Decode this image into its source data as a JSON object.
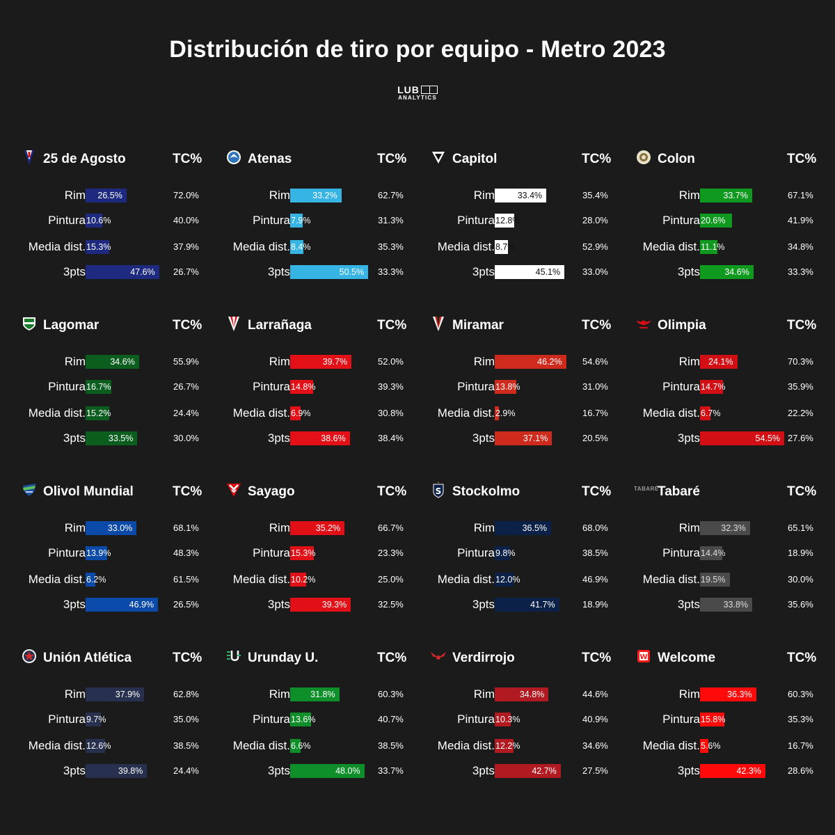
{
  "title": "Distribución de tiro por equipo - Metro 2023",
  "brand": {
    "main": "LUB",
    "sub": "ANALYTICS"
  },
  "tc_header": "TC%",
  "chart_data": {
    "type": "bar",
    "title": "Distribución de tiro por equipo - Metro 2023",
    "categories": [
      "Rim",
      "Pintura",
      "Media dist.",
      "3pts"
    ],
    "value_unit": "%",
    "teams": [
      {
        "name": "25 de Agosto",
        "color": "#1e2a80",
        "text_color": "#ffffff",
        "logo": "pennant-shield-icon",
        "distribution": [
          26.5,
          10.6,
          15.3,
          47.6
        ],
        "distribution_labels": [
          "26.5%",
          "10.6%",
          "15.3%",
          "47.6%"
        ],
        "tc": [
          "72.0%",
          "40.0%",
          "37.9%",
          "26.7%"
        ]
      },
      {
        "name": "Atenas",
        "color": "#36b5e5",
        "text_color": "#ffffff",
        "logo": "round-crest-icon",
        "distribution": [
          33.2,
          7.9,
          8.4,
          50.5
        ],
        "distribution_labels": [
          "33.2%",
          "7.9%",
          "8.4%",
          "50.5%"
        ],
        "tc": [
          "62.7%",
          "31.3%",
          "35.3%",
          "33.3%"
        ]
      },
      {
        "name": "Capitol",
        "color": "#ffffff",
        "text_color": "#111111",
        "logo": "triangle-shield-icon",
        "distribution": [
          33.4,
          12.8,
          8.7,
          45.1
        ],
        "distribution_labels": [
          "33.4%",
          "12.8%",
          "8.7%",
          "45.1%"
        ],
        "tc": [
          "35.4%",
          "28.0%",
          "52.9%",
          "33.0%"
        ]
      },
      {
        "name": "Colon",
        "color": "#0f9a1f",
        "text_color": "#ffffff",
        "logo": "round-badge-icon",
        "distribution": [
          33.7,
          20.6,
          11.1,
          34.6
        ],
        "distribution_labels": [
          "33.7%",
          "20.6%",
          "11.1%",
          "34.6%"
        ],
        "tc": [
          "67.1%",
          "41.9%",
          "34.8%",
          "33.3%"
        ]
      },
      {
        "name": "Lagomar",
        "color": "#0b5e1e",
        "text_color": "#ffffff",
        "logo": "green-shield-icon",
        "distribution": [
          34.6,
          16.7,
          15.2,
          33.5
        ],
        "distribution_labels": [
          "34.6%",
          "16.7%",
          "15.2%",
          "33.5%"
        ],
        "tc": [
          "55.9%",
          "26.7%",
          "24.4%",
          "30.0%"
        ]
      },
      {
        "name": "Larrañaga",
        "color": "#e31017",
        "text_color": "#ffffff",
        "logo": "striped-pennant-icon",
        "distribution": [
          39.7,
          14.8,
          6.9,
          38.6
        ],
        "distribution_labels": [
          "39.7%",
          "14.8%",
          "6.9%",
          "38.6%"
        ],
        "tc": [
          "52.0%",
          "39.3%",
          "30.8%",
          "38.4%"
        ]
      },
      {
        "name": "Miramar",
        "color": "#cf2a1e",
        "text_color": "#ffffff",
        "logo": "dark-pennant-icon",
        "distribution": [
          46.2,
          13.8,
          2.9,
          37.1
        ],
        "distribution_labels": [
          "46.2%",
          "13.8%",
          "2.9%",
          "37.1%"
        ],
        "tc": [
          "54.6%",
          "31.0%",
          "16.7%",
          "20.5%"
        ]
      },
      {
        "name": "Olimpia",
        "color": "#d10f14",
        "text_color": "#ffffff",
        "logo": "winged-emblem-icon",
        "distribution": [
          24.1,
          14.7,
          6.7,
          54.5
        ],
        "distribution_labels": [
          "24.1%",
          "14.7%",
          "6.7%",
          "54.5%"
        ],
        "tc": [
          "70.3%",
          "35.9%",
          "22.2%",
          "27.6%"
        ]
      },
      {
        "name": "Olivol Mundial",
        "color": "#0b4aa8",
        "text_color": "#ffffff",
        "logo": "blue-crest-icon",
        "distribution": [
          33.0,
          13.9,
          6.2,
          46.9
        ],
        "distribution_labels": [
          "33.0%",
          "13.9%",
          "6.2%",
          "46.9%"
        ],
        "tc": [
          "68.1%",
          "48.3%",
          "61.5%",
          "26.5%"
        ]
      },
      {
        "name": "Sayago",
        "color": "#e01016",
        "text_color": "#ffffff",
        "logo": "chevron-shield-icon",
        "distribution": [
          35.2,
          15.3,
          10.2,
          39.3
        ],
        "distribution_labels": [
          "35.2%",
          "15.3%",
          "10.2%",
          "39.3%"
        ],
        "tc": [
          "66.7%",
          "23.3%",
          "25.0%",
          "32.5%"
        ]
      },
      {
        "name": "Stockolmo",
        "color": "#0c2148",
        "text_color": "#ffffff",
        "logo": "s-shield-icon",
        "distribution": [
          36.5,
          9.8,
          12.0,
          41.7
        ],
        "distribution_labels": [
          "36.5%",
          "9.8%",
          "12.0%",
          "41.7%"
        ],
        "tc": [
          "68.0%",
          "38.5%",
          "46.9%",
          "18.9%"
        ]
      },
      {
        "name": "Tabaré",
        "color": "#4a4a4a",
        "text_color": "#dddddd",
        "logo": "tabare-wordmark-icon",
        "logo_text": "TABARÉ",
        "distribution": [
          32.3,
          14.4,
          19.5,
          33.8
        ],
        "distribution_labels": [
          "32.3%",
          "14.4%",
          "19.5%",
          "33.8%"
        ],
        "tc": [
          "65.1%",
          "18.9%",
          "30.0%",
          "35.6%"
        ]
      },
      {
        "name": "Unión Atlética",
        "color": "#27304f",
        "text_color": "#ffffff",
        "logo": "star-badge-icon",
        "distribution": [
          37.9,
          9.7,
          12.6,
          39.8
        ],
        "distribution_labels": [
          "37.9%",
          "9.7%",
          "12.6%",
          "39.8%"
        ],
        "tc": [
          "62.8%",
          "35.0%",
          "38.5%",
          "24.4%"
        ]
      },
      {
        "name": "Urunday U.",
        "color": "#0f8f2a",
        "text_color": "#ffffff",
        "logo": "uu-monogram-icon",
        "distribution": [
          31.8,
          13.6,
          6.6,
          48.0
        ],
        "distribution_labels": [
          "31.8%",
          "13.6%",
          "6.6%",
          "48.0%"
        ],
        "tc": [
          "60.3%",
          "40.7%",
          "38.5%",
          "33.7%"
        ]
      },
      {
        "name": "Verdirrojo",
        "color": "#b01a20",
        "text_color": "#ffffff",
        "logo": "red-wings-icon",
        "distribution": [
          34.8,
          10.3,
          12.2,
          42.7
        ],
        "distribution_labels": [
          "34.8%",
          "10.3%",
          "12.2%",
          "42.7%"
        ],
        "tc": [
          "44.6%",
          "40.9%",
          "34.6%",
          "27.5%"
        ]
      },
      {
        "name": "Welcome",
        "color": "#ff0a0a",
        "text_color": "#ffffff",
        "logo": "w-badge-icon",
        "distribution": [
          36.3,
          15.8,
          5.6,
          42.3
        ],
        "distribution_labels": [
          "36.3%",
          "15.8%",
          "5.6%",
          "42.3%"
        ],
        "tc": [
          "60.3%",
          "35.3%",
          "16.7%",
          "28.6%"
        ]
      }
    ]
  }
}
